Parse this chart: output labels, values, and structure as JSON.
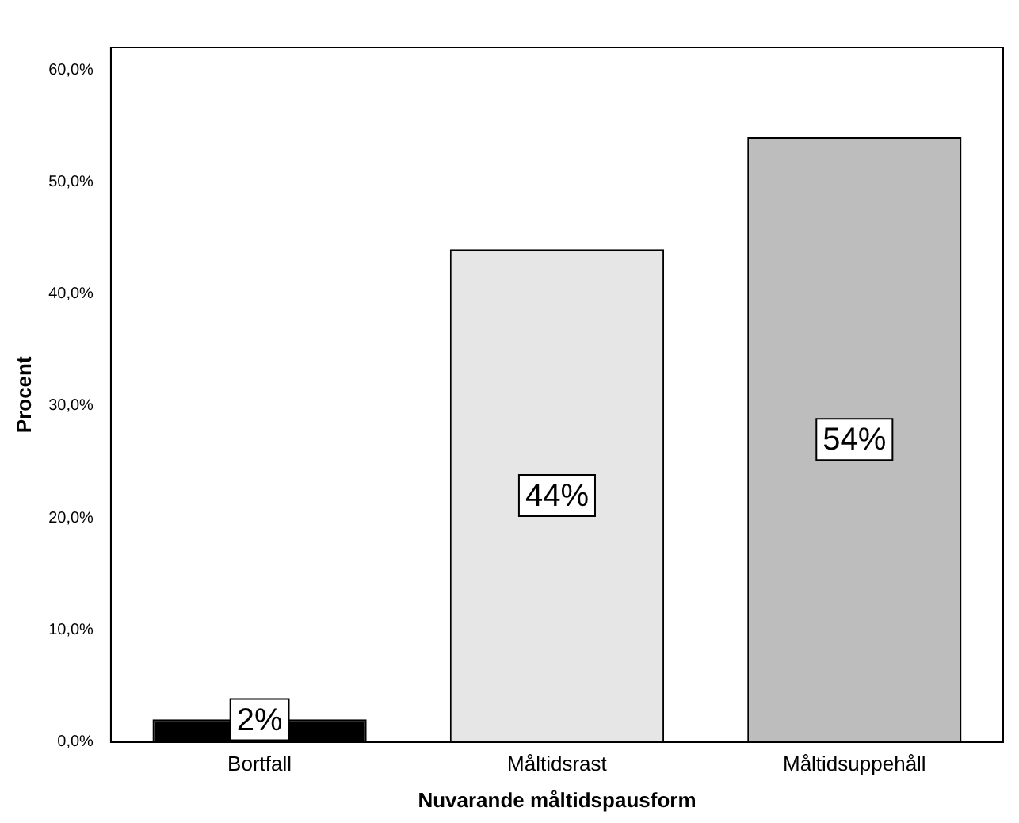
{
  "chart_data": {
    "type": "bar",
    "xlabel": "Nuvarande måltidspausform",
    "ylabel": "Procent",
    "categories": [
      "Bortfall",
      "Måltidsrast",
      "Måltidsuppehåll"
    ],
    "values": [
      2,
      44,
      54
    ],
    "colors": [
      "#000000",
      "#e6e6e6",
      "#bdbdbd"
    ],
    "value_labels": [
      "2%",
      "44%",
      "54%"
    ],
    "ylim": [
      0,
      62
    ],
    "yticks": [
      {
        "value": 0,
        "label": "0,0%"
      },
      {
        "value": 10,
        "label": "10,0%"
      },
      {
        "value": 20,
        "label": "20,0%"
      },
      {
        "value": 30,
        "label": "30,0%"
      },
      {
        "value": 40,
        "label": "40,0%"
      },
      {
        "value": 50,
        "label": "50,0%"
      },
      {
        "value": 60,
        "label": "60,0%"
      }
    ],
    "grid": false,
    "legend": false
  }
}
